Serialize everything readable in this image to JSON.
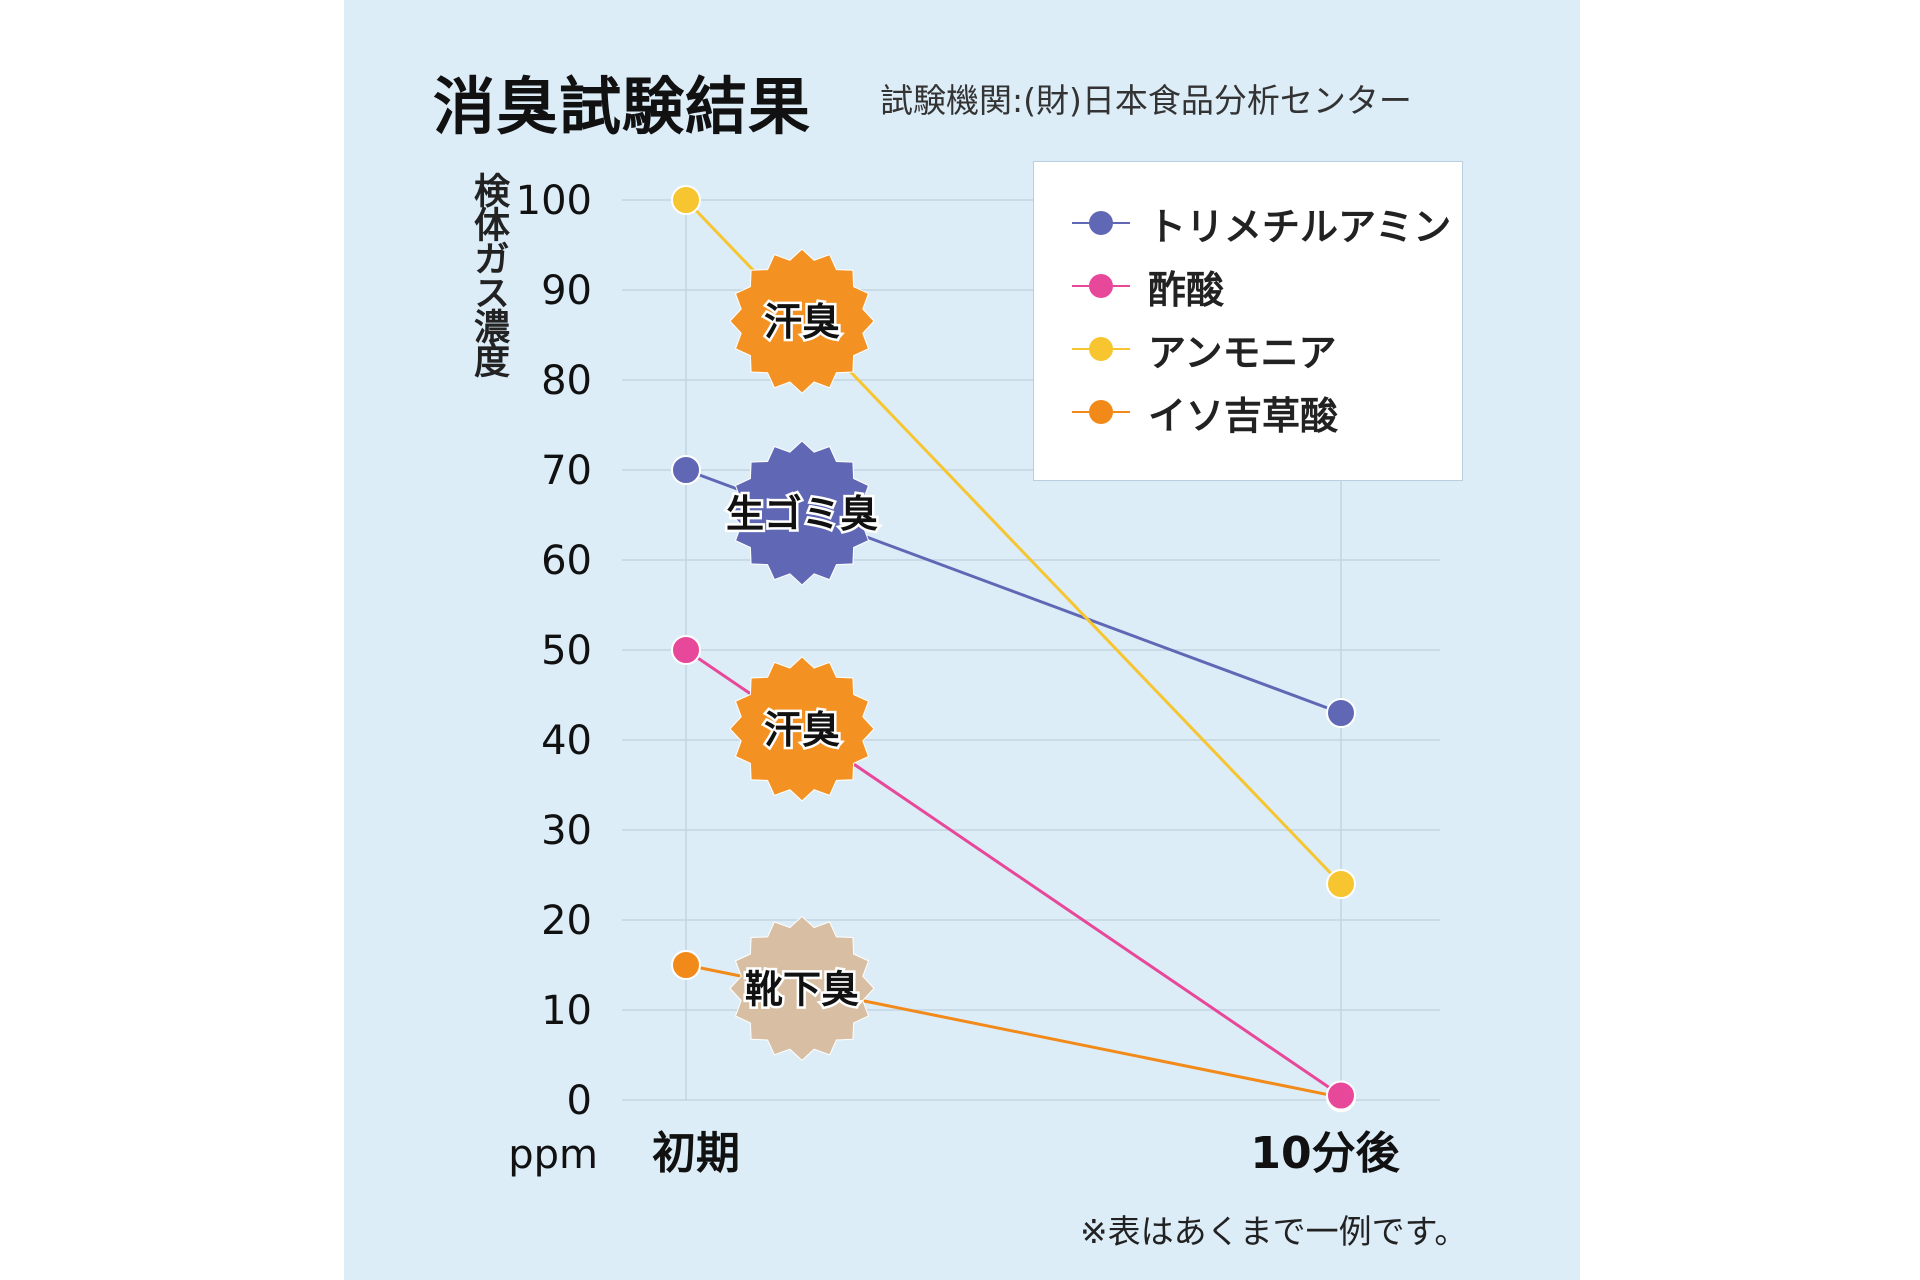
{
  "header": {
    "title": "消臭試験結果",
    "source": "試験機関:(財)日本食品分析センター"
  },
  "note": "※表はあくまで一例です。",
  "colors": {
    "trimethylamine": "#6068b5",
    "acetic_acid": "#e8489a",
    "ammonia": "#f6c530",
    "isovaleric_acid": "#f28a1a",
    "grid": "#c3d5e2",
    "badge_orange": "#f39222",
    "badge_blue": "#6068b5",
    "badge_beige": "#d8bfa4"
  },
  "chart_data": {
    "type": "line",
    "x": [
      "初期",
      "10分後"
    ],
    "unit_label": "ppm",
    "ylabel": "検体ガス濃度",
    "ylim": [
      0,
      100
    ],
    "yticks": [
      0,
      10,
      20,
      30,
      40,
      50,
      60,
      70,
      80,
      90,
      100
    ],
    "grid": true,
    "legend_position": "top-right",
    "series": [
      {
        "name": "トリメチルアミン",
        "values": [
          70,
          43
        ],
        "color": "#6068b5",
        "badge": "生ゴミ臭",
        "badge_color": "#6068b5"
      },
      {
        "name": "酢酸",
        "values": [
          50,
          0.5
        ],
        "color": "#e8489a",
        "badge": "汗臭",
        "badge_color": "#f39222"
      },
      {
        "name": "アンモニア",
        "values": [
          100,
          24
        ],
        "color": "#f6c530",
        "badge": "汗臭",
        "badge_color": "#f39222"
      },
      {
        "name": "イソ吉草酸",
        "values": [
          15,
          0.3
        ],
        "color": "#f28a1a",
        "badge": "靴下臭",
        "badge_color": "#d8bfa4"
      }
    ]
  }
}
